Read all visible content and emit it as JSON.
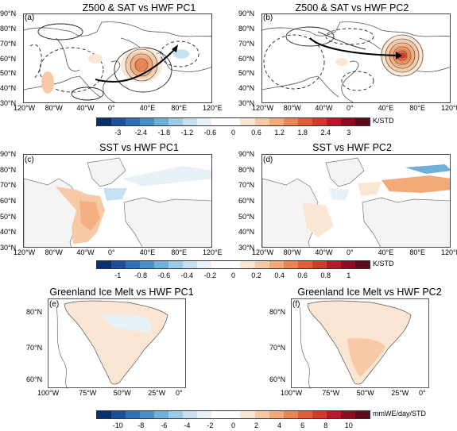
{
  "panels": {
    "a": {
      "title": "Z500 & SAT vs HWF PC1",
      "label": "(a)"
    },
    "b": {
      "title": "Z500 & SAT vs HWF PC2",
      "label": "(b)"
    },
    "c": {
      "title": "SST vs HWF PC1",
      "label": "(c)"
    },
    "d": {
      "title": "SST vs HWF PC2",
      "label": "(d)"
    },
    "e": {
      "title": "Greenland Ice Melt vs HWF PC1",
      "label": "(e)"
    },
    "f": {
      "title": "Greenland Ice Melt vs HWF PC2",
      "label": "(f)"
    }
  },
  "map_axes": {
    "lat_ticks": [
      "90°N",
      "80°N",
      "70°N",
      "60°N",
      "50°N",
      "40°N",
      "30°N"
    ],
    "lon_ticks": [
      "120°W",
      "80°W",
      "40°W",
      "0°",
      "40°E",
      "80°E",
      "120°E"
    ]
  },
  "greenland_axes": {
    "lat_ticks": [
      "80°N",
      "70°N",
      "60°N"
    ],
    "lon_ticks": [
      "100°W",
      "75°W",
      "50°W",
      "25°W",
      "0°"
    ]
  },
  "colorbars": {
    "sat": {
      "unit": "K/STD",
      "ticks": [
        "-3",
        "-2.4",
        "-1.8",
        "-1.2",
        "-0.6",
        "0",
        "0.6",
        "1.2",
        "1.8",
        "2.4",
        "3"
      ]
    },
    "sst": {
      "unit": "K/STD",
      "ticks": [
        "-1",
        "-0.8",
        "-0.6",
        "-0.4",
        "-0.2",
        "0",
        "0.2",
        "0.4",
        "0.6",
        "0.8",
        "1"
      ]
    },
    "melt": {
      "unit": "mmWE/day/STD",
      "ticks": [
        "-10",
        "-8",
        "-6",
        "-4",
        "-2",
        "0",
        "2",
        "4",
        "6",
        "8",
        "10"
      ]
    }
  },
  "colormap": [
    "#08306b",
    "#1c4f9c",
    "#2f6fb7",
    "#4a91c9",
    "#6fb0da",
    "#9ccbe6",
    "#c6e2f1",
    "#e6f1f8",
    "#ffffff",
    "#ffffff",
    "#fbe5d3",
    "#f8c9a6",
    "#f4a979",
    "#ec8555",
    "#e05f3a",
    "#cf3a2a",
    "#b5192a",
    "#8b0d23",
    "#5e0a1c"
  ]
}
